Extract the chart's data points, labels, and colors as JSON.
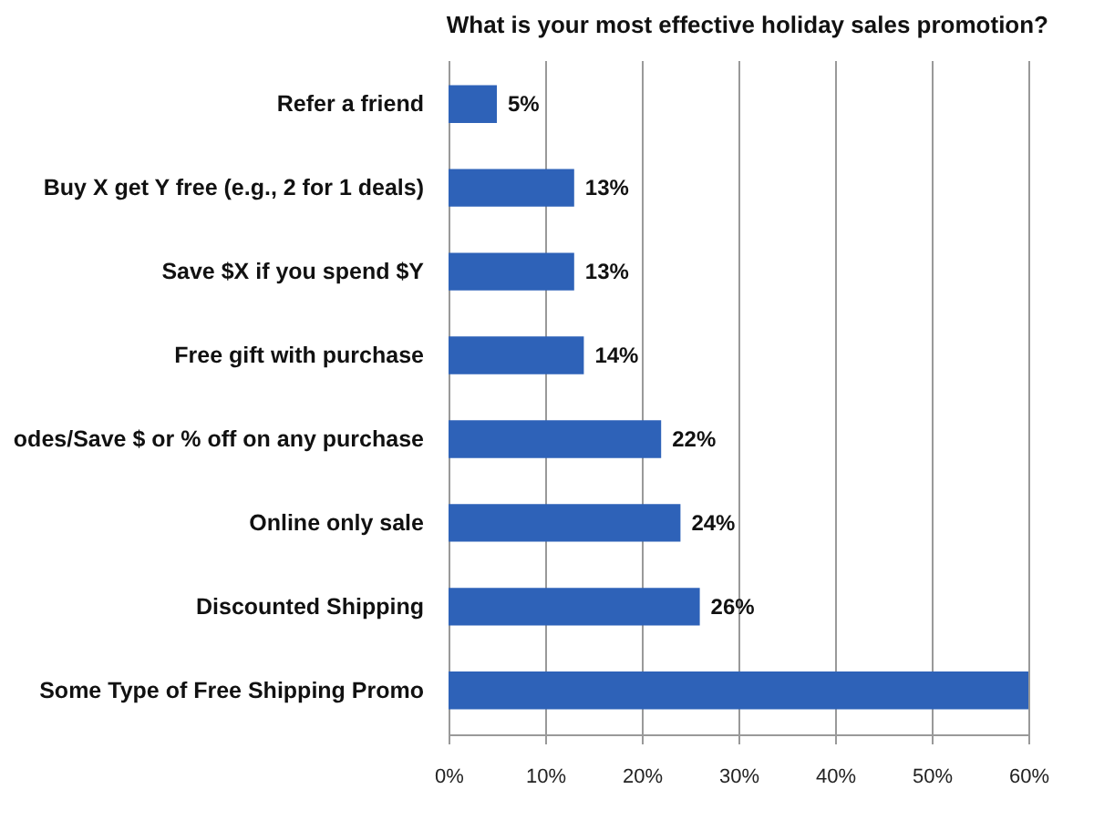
{
  "chart_data": {
    "type": "bar",
    "orientation": "horizontal",
    "title": "What is your most effective holiday sales promotion?",
    "categories": [
      "Refer a friend",
      "Buy X get Y free (e.g., 2 for 1 deals)",
      "Save $X if you spend $Y",
      "Free gift with purchase",
      "odes/Save $ or % off on any purchase",
      "Online only sale",
      "Discounted Shipping",
      "Some Type of Free Shipping Promo"
    ],
    "values": [
      5,
      13,
      13,
      14,
      22,
      24,
      26,
      60
    ],
    "value_labels": [
      "5%",
      "13%",
      "13%",
      "14%",
      "22%",
      "24%",
      "26%",
      null
    ],
    "color": "#2e62b8",
    "xlim": [
      0,
      60
    ],
    "xticks": [
      {
        "value": 0,
        "label": "0%"
      },
      {
        "value": 10,
        "label": "10%"
      },
      {
        "value": 20,
        "label": "20%"
      },
      {
        "value": 30,
        "label": "30%"
      },
      {
        "value": 40,
        "label": "40%"
      },
      {
        "value": 50,
        "label": "50%"
      },
      {
        "value": 60,
        "label": "60%"
      }
    ],
    "grid": "x"
  }
}
